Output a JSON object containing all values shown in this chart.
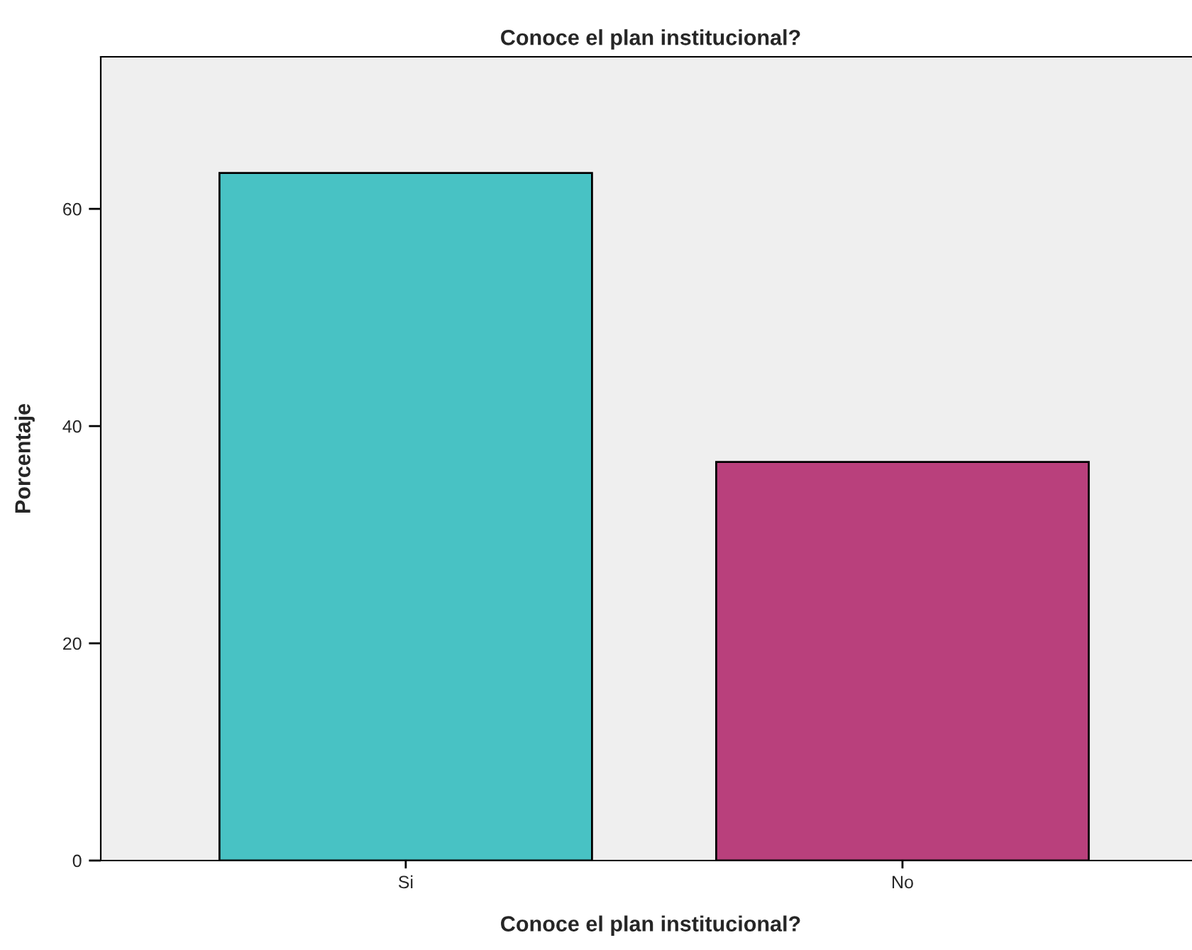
{
  "chart_data": {
    "type": "bar",
    "title": "Conoce el plan institucional?",
    "xlabel": "Conoce el plan institucional?",
    "ylabel": "Porcentaje",
    "categories": [
      "Si",
      "No"
    ],
    "colors": [
      "#48c2c4",
      "#b9407c"
    ],
    "values": [
      63.3,
      36.7
    ],
    "ylim": [
      0,
      74
    ],
    "yticks": [
      0,
      20,
      40,
      60
    ],
    "grid": false,
    "legend": false
  }
}
